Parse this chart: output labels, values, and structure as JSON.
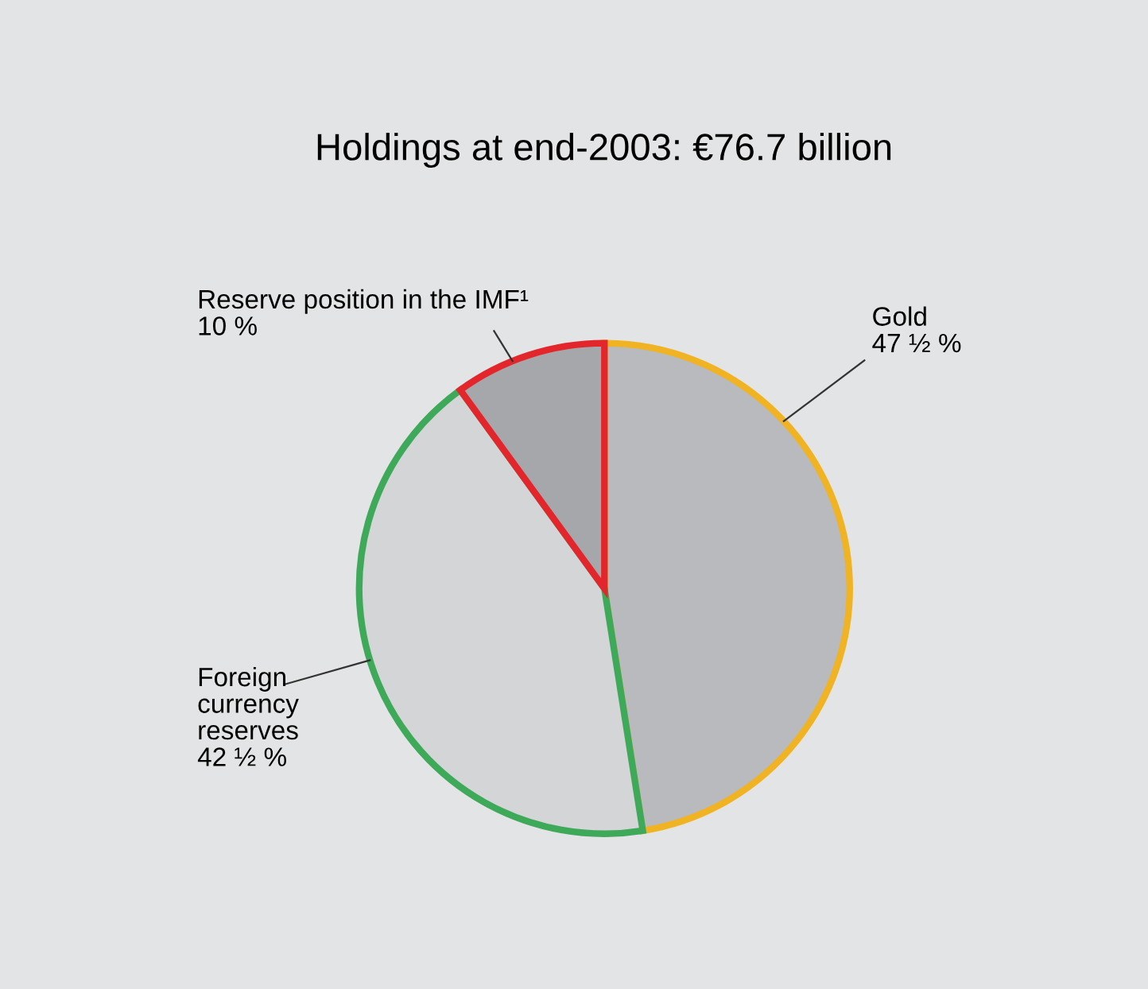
{
  "chart_data": {
    "type": "pie",
    "title": "Holdings at end-2003: €76.7 billion",
    "categories": [
      "Gold",
      "Foreign\ncurrency\nreserves",
      "Reserve position in the IMF¹"
    ],
    "values": [
      47.5,
      42.5,
      10
    ],
    "value_labels": [
      "47 ½ %",
      "42 ½ %",
      "10 %"
    ],
    "colors": [
      "#f0b323",
      "#3ea958",
      "#e3262c"
    ],
    "legend": false
  }
}
